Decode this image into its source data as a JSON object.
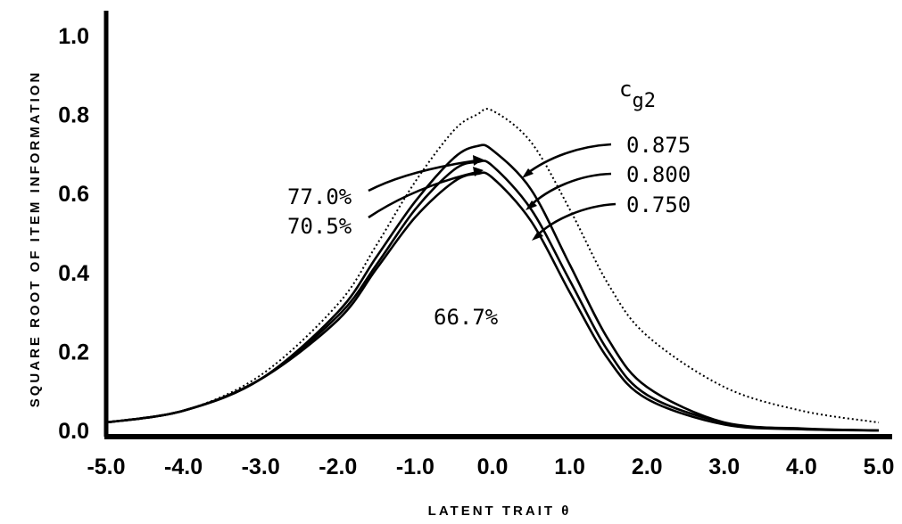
{
  "chart_data": {
    "type": "line",
    "xlabel": "LATENT TRAIT θ",
    "ylabel": "SQUARE ROOT OF ITEM INFORMATION",
    "xlim": [
      -5.0,
      5.0
    ],
    "ylim": [
      0.0,
      1.0
    ],
    "x_ticks": [
      -5.0,
      -4.0,
      -3.0,
      -2.0,
      -1.0,
      0.0,
      1.0,
      2.0,
      3.0,
      4.0,
      5.0
    ],
    "x_tick_labels": [
      "-5.0",
      "-4.0",
      "-3.0",
      "-2.0",
      "-1.0",
      "0.0",
      "1.0",
      "2.0",
      "3.0",
      "4.0",
      "5.0"
    ],
    "y_ticks": [
      0.0,
      0.2,
      0.4,
      0.6,
      0.8,
      1.0
    ],
    "y_tick_labels": [
      "0.0",
      "0.2",
      "0.4",
      "0.6",
      "0.8",
      "1.0"
    ],
    "grid": false,
    "x": [
      -5.0,
      -4.0,
      -3.0,
      -2.0,
      -1.5,
      -1.0,
      -0.5,
      -0.2,
      0.0,
      0.5,
      1.0,
      1.5,
      2.0,
      3.0,
      4.0,
      5.0
    ],
    "series": [
      {
        "name": "",
        "style": "dotted",
        "values": [
          0.02,
          0.05,
          0.14,
          0.32,
          0.47,
          0.63,
          0.76,
          0.8,
          0.81,
          0.73,
          0.56,
          0.37,
          0.24,
          0.11,
          0.05,
          0.02
        ]
      },
      {
        "name": "0.875",
        "style": "solid",
        "values": [
          0.02,
          0.05,
          0.13,
          0.3,
          0.44,
          0.58,
          0.69,
          0.72,
          0.71,
          0.61,
          0.42,
          0.23,
          0.11,
          0.02,
          0.005,
          0.0
        ]
      },
      {
        "name": "0.800",
        "style": "solid",
        "values": [
          0.02,
          0.05,
          0.13,
          0.29,
          0.42,
          0.56,
          0.66,
          0.68,
          0.67,
          0.56,
          0.38,
          0.2,
          0.09,
          0.02,
          0.004,
          0.0
        ]
      },
      {
        "name": "0.750",
        "style": "solid",
        "values": [
          0.02,
          0.05,
          0.13,
          0.28,
          0.41,
          0.54,
          0.63,
          0.65,
          0.64,
          0.53,
          0.35,
          0.18,
          0.08,
          0.015,
          0.003,
          0.0
        ]
      }
    ],
    "legend_title": "c",
    "legend_title_sub": "g2",
    "annotations": {
      "pct_1": "77.0%",
      "pct_2": "70.5%",
      "pct_3": "66.7%",
      "val_1": "0.875",
      "val_2": "0.800",
      "val_3": "0.750"
    }
  }
}
